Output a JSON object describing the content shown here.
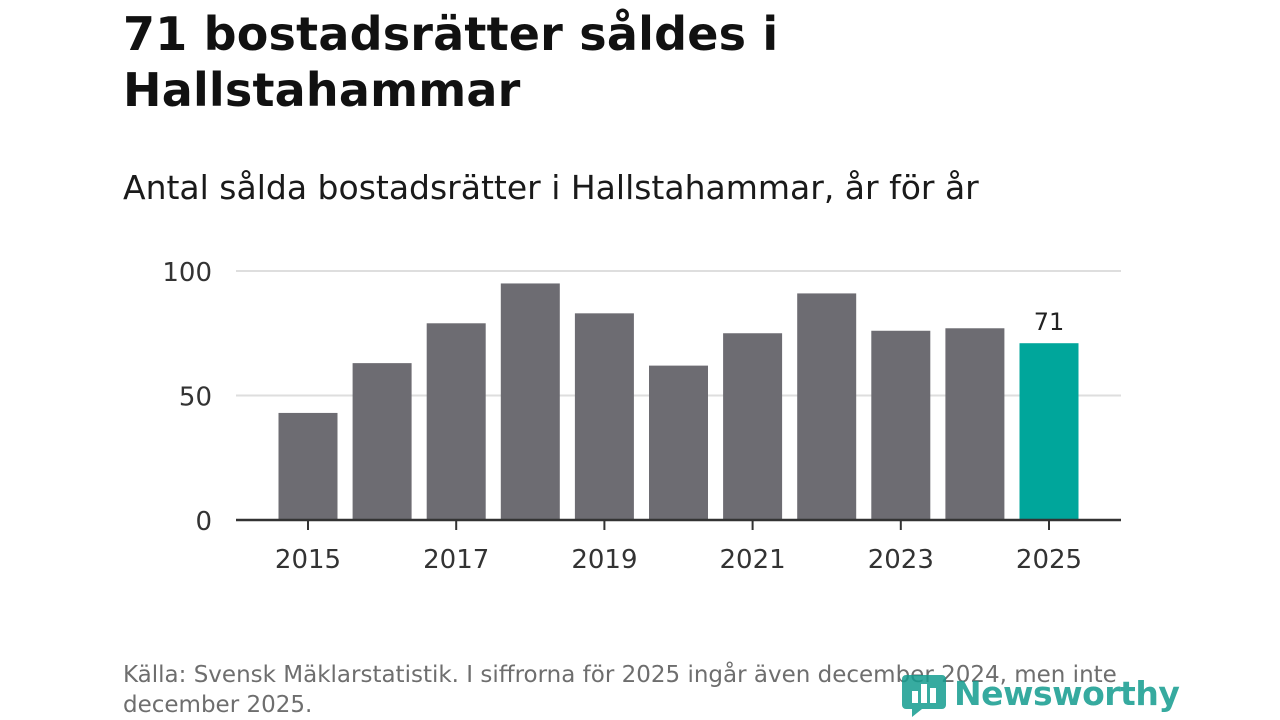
{
  "header": {
    "title": "71 bostadsrätter såldes i Hallstahammar",
    "subtitle": "Antal sålda bostadsrätter i Hallstahammar, år för år"
  },
  "footer": {
    "source": "Källa: Svensk Mäklarstatistik. I siffrorna för 2025 ingår även december 2024, men inte december 2025.",
    "logo_text": "Newsworthy",
    "logo_icon": "bar-chart-logo-icon"
  },
  "colors": {
    "bar": "#6d6c72",
    "highlight": "#00a69b",
    "grid": "#dedede",
    "axis": "#333333",
    "logo": "#149c8f"
  },
  "chart_data": {
    "type": "bar",
    "title": "71 bostadsrätter såldes i Hallstahammar",
    "subtitle": "Antal sålda bostadsrätter i Hallstahammar, år för år",
    "categories": [
      "2015",
      "2016",
      "2017",
      "2018",
      "2019",
      "2020",
      "2021",
      "2022",
      "2023",
      "2024",
      "2025"
    ],
    "values": [
      43,
      63,
      79,
      95,
      83,
      62,
      75,
      91,
      76,
      77,
      71
    ],
    "highlight_index": 10,
    "value_labels": {
      "10": "71"
    },
    "x_tick_labels": [
      "2015",
      "2017",
      "2019",
      "2021",
      "2023",
      "2025"
    ],
    "y_ticks": [
      0,
      50,
      100
    ],
    "y_tick_labels": [
      "0",
      "50",
      "100"
    ],
    "ylim": [
      0,
      100
    ],
    "xlabel": "",
    "ylabel": "",
    "grid": true
  }
}
